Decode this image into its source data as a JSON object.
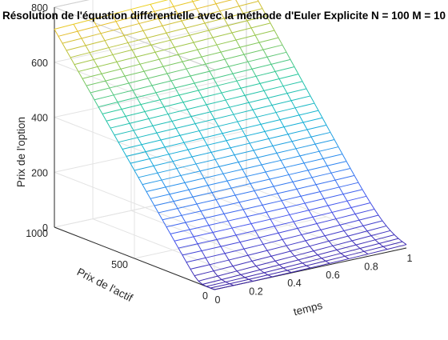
{
  "chart_data": {
    "type": "mesh3d",
    "title": "Résolution de l'équation différentielle avec la méthode d'Euler Explicite N = 100 M = 10",
    "xlabel": "temps",
    "ylabel": "Prix de l'actif",
    "zlabel": "Prix de l'option",
    "xlim": [
      0,
      1
    ],
    "ylim": [
      0,
      1000
    ],
    "zlim": [
      0,
      800
    ],
    "x_ticks": [
      "0",
      "0.2",
      "0.4",
      "0.6",
      "0.8",
      "1"
    ],
    "y_ticks": [
      "0",
      "500",
      "1000"
    ],
    "z_ticks": [
      "0",
      "200",
      "400",
      "600",
      "800"
    ],
    "strike": 100,
    "colormap": "parula",
    "grid": true,
    "surface": {
      "t_mesh": [
        0,
        0.1,
        0.2,
        0.3,
        0.4,
        0.5,
        0.6,
        0.7,
        0.8,
        0.9,
        1.0
      ],
      "S_max": 1000,
      "S_steps": 40,
      "z_at_S_max_t0": 720,
      "z_at_S_max_t1": 750
    }
  }
}
